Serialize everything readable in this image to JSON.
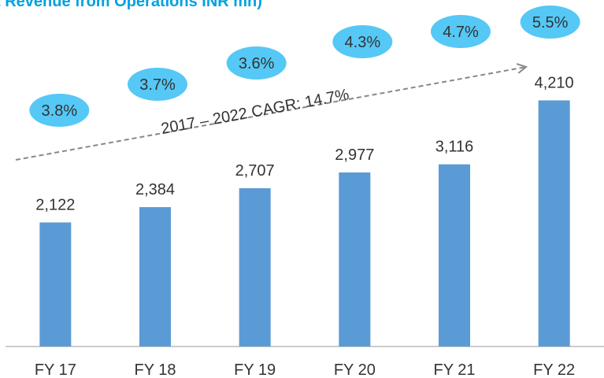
{
  "chart_data": {
    "type": "bar",
    "title": "t Revenue from Operations INR mn)",
    "categories": [
      "FY 17",
      "FY 18",
      "FY 19",
      "FY 20",
      "FY 21",
      "FY 22"
    ],
    "values": [
      2122,
      2384,
      2707,
      2977,
      3116,
      4210
    ],
    "value_labels": [
      "2,122",
      "2,384",
      "2,707",
      "2,977",
      "3,116",
      "4,210"
    ],
    "color": "#5b9bd5",
    "ylim": [
      0,
      5900
    ],
    "annotation": "2017 – 2022 CAGR: 14.7%",
    "bubbles": {
      "color": "#55c8f5",
      "values": [
        3.8,
        3.7,
        3.6,
        4.3,
        4.7,
        5.5
      ],
      "value_labels": [
        "3.8%",
        "3.7%",
        "3.6%",
        "4.3%",
        "4.7%",
        "5.5%"
      ]
    }
  }
}
